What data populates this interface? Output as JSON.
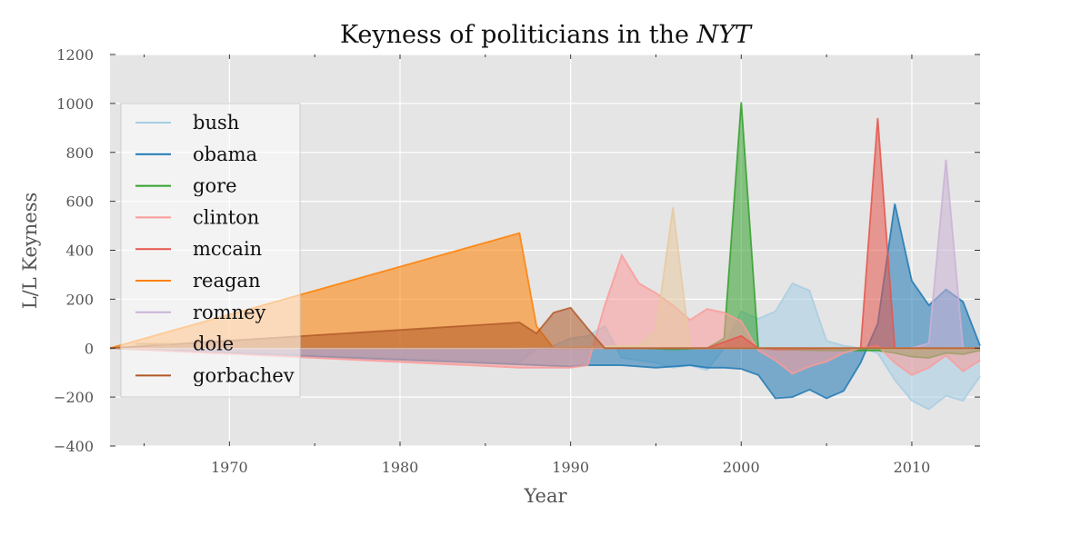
{
  "chart_data": {
    "type": "area",
    "title": "Keyness of politicians in the",
    "title_italic": "NYT",
    "xlabel": "Year",
    "ylabel": "L/L Keyness",
    "xlim": [
      1963,
      2014
    ],
    "ylim": [
      -400,
      1200
    ],
    "xticks": [
      1970,
      1980,
      1990,
      2000,
      2010
    ],
    "yticks": [
      -400,
      -200,
      0,
      200,
      400,
      600,
      800,
      1000,
      1200
    ],
    "ytick_labels": [
      "−400",
      "−200",
      "0",
      "200",
      "400",
      "600",
      "800",
      "1000",
      "1200"
    ],
    "grid": true,
    "legend_position": "upper-left",
    "series": [
      {
        "name": "bush",
        "color": "#a6cee3",
        "x": [
          1963,
          1987,
          1988,
          1989,
          1990,
          1991,
          1992,
          1993,
          1994,
          1995,
          1996,
          1997,
          1998,
          1999,
          2000,
          2001,
          2002,
          2003,
          2004,
          2005,
          2006,
          2007,
          2008,
          2009,
          2010,
          2011,
          2012,
          2013,
          2014
        ],
        "y": [
          0,
          -60,
          0,
          10,
          40,
          50,
          90,
          -40,
          -50,
          -60,
          -80,
          -70,
          -90,
          0,
          150,
          120,
          150,
          265,
          235,
          30,
          10,
          0,
          -20,
          -130,
          -215,
          -250,
          -195,
          -215,
          -115
        ]
      },
      {
        "name": "obama",
        "color": "#1f78b4",
        "x": [
          1963,
          1990,
          1991,
          1992,
          1993,
          1994,
          1995,
          1996,
          1997,
          1998,
          1999,
          2000,
          2001,
          2002,
          2003,
          2004,
          2005,
          2006,
          2007,
          2008,
          2009,
          2010,
          2011,
          2012,
          2013,
          2014
        ],
        "y": [
          0,
          -75,
          -70,
          -70,
          -70,
          -75,
          -80,
          -75,
          -70,
          -80,
          -80,
          -85,
          -110,
          -205,
          -200,
          -170,
          -205,
          -175,
          -60,
          100,
          590,
          275,
          175,
          240,
          190,
          10
        ]
      },
      {
        "name": "gore",
        "color": "#33a02c",
        "x": [
          1963,
          1990,
          1994,
          1996,
          1998,
          1999,
          2000,
          2001,
          2002,
          2005,
          2008,
          2009,
          2010,
          2011,
          2012,
          2013,
          2014
        ],
        "y": [
          0,
          0,
          0,
          -5,
          0,
          40,
          1005,
          0,
          -5,
          -10,
          -10,
          -20,
          -35,
          -40,
          -20,
          -25,
          -10
        ]
      },
      {
        "name": "clinton",
        "color": "#fb9a99",
        "x": [
          1963,
          1987,
          1990,
          1991,
          1992,
          1993,
          1994,
          1995,
          1996,
          1997,
          1998,
          1999,
          2000,
          2001,
          2002,
          2003,
          2004,
          2005,
          2006,
          2007,
          2008,
          2009,
          2010,
          2011,
          2012,
          2013,
          2014
        ],
        "y": [
          0,
          -80,
          -80,
          -70,
          175,
          380,
          265,
          225,
          175,
          115,
          160,
          145,
          110,
          -10,
          -50,
          -105,
          -75,
          -55,
          -20,
          0,
          10,
          -60,
          -110,
          -80,
          -30,
          -95,
          -50
        ]
      },
      {
        "name": "mccain",
        "color": "#e6554a",
        "x": [
          1963,
          1998,
          2000,
          2001,
          2002,
          2007,
          2008,
          2009,
          2014
        ],
        "y": [
          0,
          0,
          50,
          0,
          -5,
          0,
          940,
          0,
          0
        ]
      },
      {
        "name": "reagan",
        "color": "#ff7f00",
        "x": [
          1963,
          1987,
          1988,
          1989,
          1990,
          2014
        ],
        "y": [
          0,
          470,
          90,
          0,
          0,
          0
        ]
      },
      {
        "name": "romney",
        "color": "#cab2d6",
        "x": [
          1963,
          2010,
          2011,
          2012,
          2013,
          2014
        ],
        "y": [
          0,
          0,
          20,
          770,
          0,
          0
        ]
      },
      {
        "name": "dole",
        "color": "#e8c9a0",
        "x": [
          1963,
          1987,
          1994,
          1995,
          1996,
          1997,
          2014
        ],
        "y": [
          0,
          0,
          10,
          70,
          575,
          0,
          0
        ]
      },
      {
        "name": "gorbachev",
        "color": "#b15928",
        "x": [
          1963,
          1987,
          1988,
          1989,
          1990,
          1991,
          1992,
          2014
        ],
        "y": [
          0,
          105,
          60,
          145,
          165,
          80,
          0,
          0
        ]
      }
    ]
  }
}
